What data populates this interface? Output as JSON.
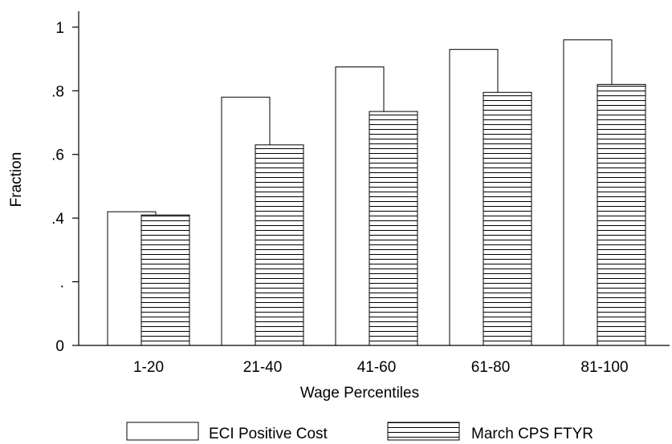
{
  "chart_data": {
    "type": "bar",
    "title": "",
    "xlabel": "Wage Percentiles",
    "ylabel": "Fraction",
    "categories": [
      "1-20",
      "21-40",
      "41-60",
      "61-80",
      "81-100"
    ],
    "series": [
      {
        "name": "ECI Positive Cost",
        "values": [
          0.42,
          0.78,
          0.875,
          0.93,
          0.96
        ]
      },
      {
        "name": "March CPS FTYR",
        "values": [
          0.41,
          0.63,
          0.735,
          0.795,
          0.82
        ]
      }
    ],
    "ylim": [
      0,
      1.05
    ],
    "yticks": [
      {
        "value": 0,
        "label": "0"
      },
      {
        "value": 0.2,
        "label": "."
      },
      {
        "value": 0.4,
        "label": ".4"
      },
      {
        "value": 0.6,
        "label": ".6"
      },
      {
        "value": 0.8,
        "label": ".8"
      },
      {
        "value": 1,
        "label": "1"
      }
    ],
    "grid": false,
    "legend_position": "bottom-center"
  },
  "colors": {
    "axis": "#000000",
    "bar_fill": "#ffffff",
    "hatch": "#000000"
  }
}
